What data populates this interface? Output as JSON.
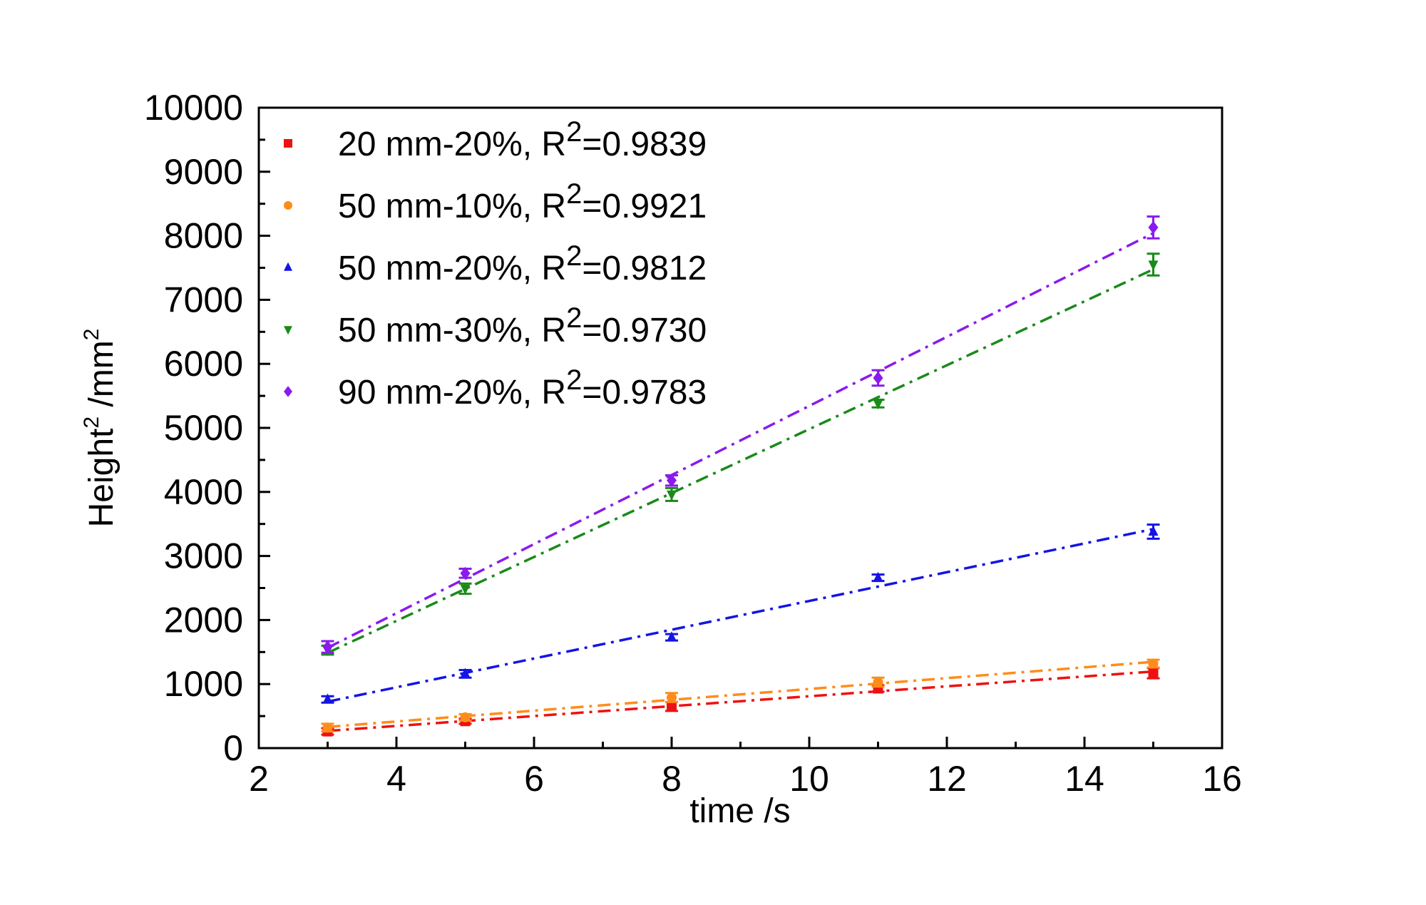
{
  "chart_data": {
    "type": "scatter",
    "title": "",
    "xlabel": "time /s",
    "ylabel_main": "Height",
    "ylabel_sup": "2",
    "ylabel_tail": " /mm",
    "ylabel_tail_sup": "2",
    "xlim": [
      2,
      16
    ],
    "ylim": [
      0,
      10000
    ],
    "xticks": [
      "2",
      "4",
      "6",
      "8",
      "10",
      "12",
      "14",
      "16"
    ],
    "yticks": [
      "0",
      "1000",
      "2000",
      "3000",
      "4000",
      "5000",
      "6000",
      "7000",
      "8000",
      "9000",
      "10000"
    ],
    "grid": false,
    "legend_position": "top-left",
    "x": [
      3,
      5,
      8,
      11,
      15
    ],
    "series": [
      {
        "name": "20 mm-20%, R",
        "r2": "=0.9839",
        "sup": "2",
        "color": "#ee1111",
        "marker": "square",
        "values": [
          260,
          420,
          650,
          930,
          1170
        ],
        "errors": [
          50,
          40,
          70,
          50,
          80
        ]
      },
      {
        "name": "50 mm-10%, R",
        "r2": "=0.9921",
        "sup": "2",
        "color": "#ff8c1a",
        "marker": "circle",
        "values": [
          320,
          480,
          790,
          1030,
          1320
        ],
        "errors": [
          60,
          50,
          70,
          70,
          60
        ]
      },
      {
        "name": "50 mm-20%, R",
        "r2": "=0.9812",
        "sup": "2",
        "color": "#1414e6",
        "marker": "triangle-up",
        "values": [
          760,
          1160,
          1730,
          2660,
          3380
        ],
        "errors": [
          50,
          60,
          50,
          50,
          110
        ]
      },
      {
        "name": "50 mm-30%, R",
        "r2": "=0.9730",
        "sup": "2",
        "color": "#1a8a1a",
        "marker": "triangle-down",
        "values": [
          1530,
          2490,
          3960,
          5380,
          7550
        ],
        "errors": [
          70,
          80,
          100,
          60,
          170
        ]
      },
      {
        "name": "90 mm-20%, R",
        "r2": "=0.9783",
        "sup": "2",
        "color": "#8a1aee",
        "marker": "diamond",
        "values": [
          1580,
          2730,
          4180,
          5780,
          8130
        ],
        "errors": [
          90,
          70,
          80,
          120,
          170
        ]
      }
    ]
  }
}
